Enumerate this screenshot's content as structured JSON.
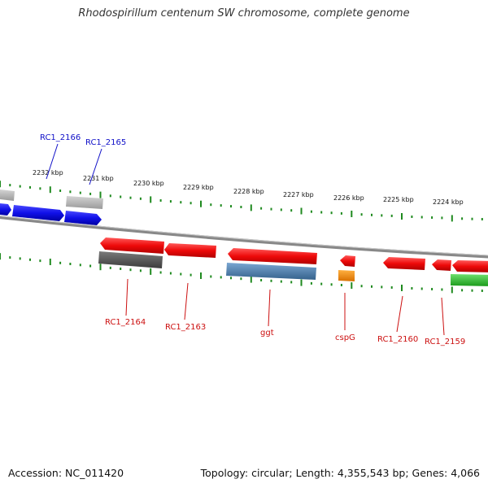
{
  "title": "Rhodospirillum centenum SW chromosome, complete genome",
  "footer": {
    "accession": "Accession: NC_011420",
    "topology": "Topology: circular; Length: 4,355,543 bp; Genes: 4,066"
  },
  "colors": {
    "forward_cds": "#1010e8",
    "reverse_cds": "#ee0a0a",
    "grey_feature": "#a8a8a8",
    "dark_grey_feature": "#555555",
    "steelblue_feature": "#4a7fb0",
    "orange_feature": "#f5900a",
    "green_feature": "#2dbf2d",
    "ticks": "#1f8a1f",
    "backbone": "#888888"
  },
  "ticks": [
    {
      "label": "2232 kbp"
    },
    {
      "label": "2231 kbp"
    },
    {
      "label": "2230 kbp"
    },
    {
      "label": "2229 kbp"
    },
    {
      "label": "2228 kbp"
    },
    {
      "label": "2227 kbp"
    },
    {
      "label": "2226 kbp"
    },
    {
      "label": "2225 kbp"
    },
    {
      "label": "2224 kbp"
    }
  ],
  "gene_labels_top": [
    {
      "label": "RC1_2166",
      "color": "#1010c8"
    },
    {
      "label": "RC1_2165",
      "color": "#1010c8"
    }
  ],
  "gene_labels_bottom": [
    {
      "label": "RC1_2164",
      "color": "#cc1010"
    },
    {
      "label": "RC1_2163",
      "color": "#cc1010"
    },
    {
      "label": "ggt",
      "color": "#cc1010"
    },
    {
      "label": "cspG",
      "color": "#cc1010"
    },
    {
      "label": "RC1_2160",
      "color": "#cc1010"
    },
    {
      "label": "RC1_2159",
      "color": "#cc1010"
    }
  ]
}
